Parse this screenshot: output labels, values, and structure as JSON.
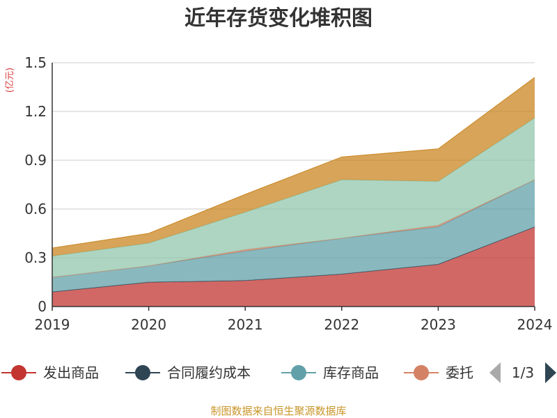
{
  "chart_data": {
    "type": "area",
    "stacked": true,
    "title": "近年存货变化堆积图",
    "unit_label": "(亿元)",
    "x": [
      "2019",
      "2020",
      "2021",
      "2022",
      "2023",
      "2024"
    ],
    "ylim": [
      0,
      1.5
    ],
    "yticks": [
      "0",
      "0.3",
      "0.6",
      "0.9",
      "1.2",
      "1.5"
    ],
    "grid": true,
    "legend_position": "bottom",
    "series": [
      {
        "name": "发出商品",
        "color": "#c23531",
        "values": [
          0.09,
          0.15,
          0.16,
          0.2,
          0.26,
          0.49
        ]
      },
      {
        "name": "合同履约成本",
        "color": "#2f4554",
        "values": [
          0.0,
          0.0,
          0.0,
          0.0,
          0.0,
          0.0
        ]
      },
      {
        "name": "库存商品",
        "color": "#61a0a8",
        "values": [
          0.09,
          0.1,
          0.18,
          0.22,
          0.23,
          0.29
        ]
      },
      {
        "name": "委托加工物资",
        "color": "#d48265",
        "values": [
          0.0,
          0.0,
          0.01,
          0.0,
          0.01,
          0.0
        ]
      },
      {
        "name": "",
        "color": "#91c7ae",
        "values": [
          0.13,
          0.14,
          0.23,
          0.36,
          0.27,
          0.38
        ]
      },
      {
        "name": "",
        "color": "#ca8622",
        "values": [
          0.05,
          0.06,
          0.11,
          0.14,
          0.2,
          0.25
        ]
      }
    ]
  },
  "legend": {
    "visible_items": [
      {
        "label": "发出商品",
        "color": "#c23531"
      },
      {
        "label": "合同履约成本",
        "color": "#2f4554"
      },
      {
        "label": "库存商品",
        "color": "#61a0a8"
      },
      {
        "label": "委托",
        "color": "#d48265"
      }
    ],
    "page_indicator": "1/3",
    "prev_icon": "triangle-left-icon",
    "next_icon": "triangle-right-icon"
  },
  "source_text": "制图数据来自恒生聚源数据库"
}
